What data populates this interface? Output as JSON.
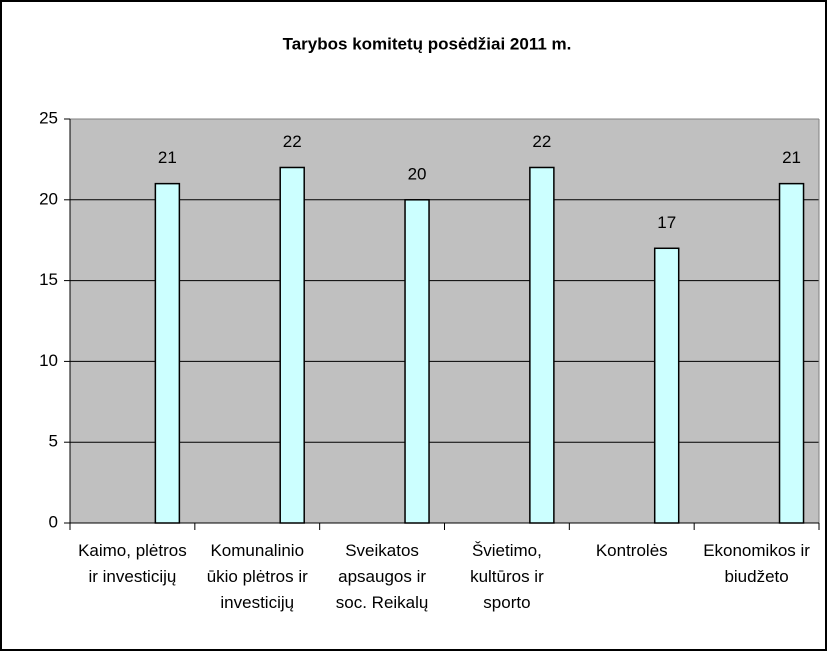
{
  "chart_data": {
    "type": "bar",
    "title": "Tarybos komitetų posėdžiai 2011 m.",
    "categories": [
      "Kaimo, plėtros ir investicijų",
      "Komunalinio ūkio plėtros ir investicijų",
      "Sveikatos apsaugos ir soc. Reikalų",
      "Švietimo, kultūros ir sporto",
      "Kontrolės",
      "Ekonomikos ir biudžeto"
    ],
    "values": [
      21,
      22,
      20,
      22,
      17,
      21
    ],
    "color": "#ccffff",
    "ylim": [
      0,
      25
    ],
    "yticks": [
      0,
      5,
      10,
      15,
      20,
      25
    ],
    "grid": true
  }
}
